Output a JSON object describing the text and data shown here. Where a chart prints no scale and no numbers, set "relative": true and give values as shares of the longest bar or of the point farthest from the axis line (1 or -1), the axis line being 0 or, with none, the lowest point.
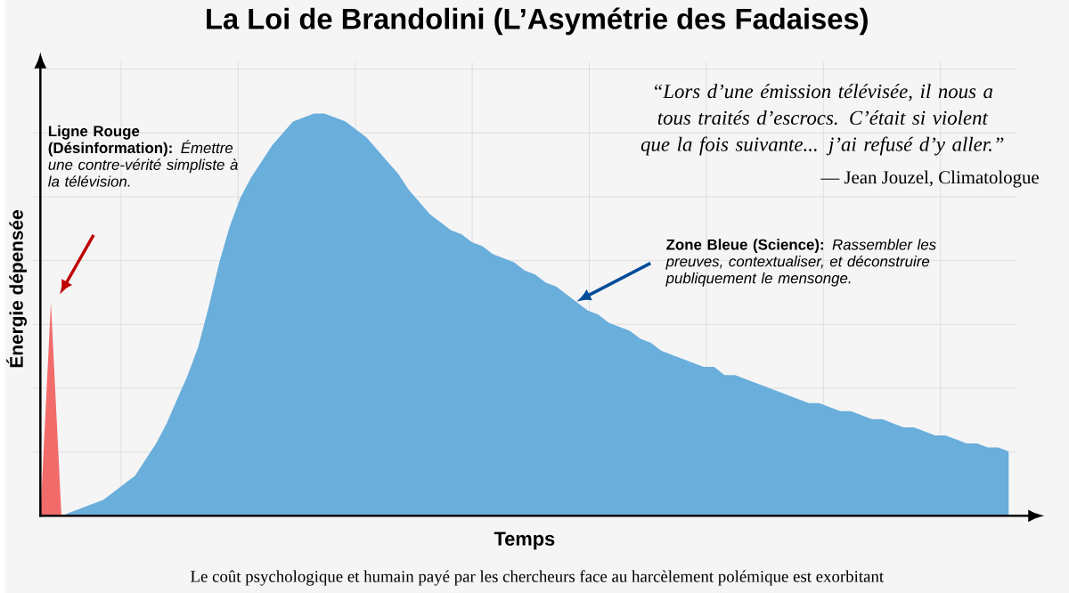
{
  "chart_data": {
    "type": "area",
    "relative": true,
    "grid": true,
    "title": "La Loi de Brandolini (L’Asymétrie des Fadaises)",
    "xlabel": "Temps",
    "ylabel": "Énergie dépensée",
    "categories": [
      null,
      null,
      null,
      null,
      null,
      null,
      null,
      null,
      null,
      null,
      null,
      null,
      null,
      null,
      null,
      null,
      null,
      null,
      null,
      null,
      null,
      null,
      null,
      null,
      null,
      null,
      null,
      null,
      null,
      null,
      null,
      null,
      null,
      null,
      null,
      null,
      null,
      null,
      null,
      null,
      null,
      null,
      null,
      null,
      null,
      null,
      null,
      null,
      null,
      null,
      null,
      null,
      null,
      null,
      null,
      null,
      null,
      null,
      null,
      null,
      null,
      null,
      null,
      null,
      null,
      null,
      null,
      null,
      null,
      null,
      null,
      null,
      null,
      null,
      null,
      null,
      null,
      null,
      null,
      null,
      null,
      null,
      null,
      null,
      null,
      null,
      null,
      null,
      null,
      null,
      null,
      null,
      null
    ],
    "series": [
      {
        "color": "#f26b6b",
        "values": [
          0,
          0.53,
          0,
          null,
          null,
          null,
          null,
          null,
          null,
          null,
          null,
          null,
          null,
          null,
          null,
          null,
          null,
          null,
          null,
          null,
          null,
          null,
          null,
          null,
          null,
          null,
          null,
          null,
          null,
          null,
          null,
          null,
          null,
          null,
          null,
          null,
          null,
          null,
          null,
          null,
          null,
          null,
          null,
          null,
          null,
          null,
          null,
          null,
          null,
          null,
          null,
          null,
          null,
          null,
          null,
          null,
          null,
          null,
          null,
          null,
          null,
          null,
          null,
          null,
          null,
          null,
          null,
          null,
          null,
          null,
          null,
          null,
          null,
          null,
          null,
          null,
          null,
          null,
          null,
          null,
          null,
          null,
          null,
          null,
          null,
          null,
          null,
          null,
          null,
          null,
          null,
          null,
          null
        ]
      },
      {
        "color": "#6aaedb",
        "values": [
          0,
          0,
          0,
          0.01,
          0.02,
          0.03,
          0.04,
          0.06,
          0.08,
          0.1,
          0.14,
          0.18,
          0.23,
          0.29,
          0.35,
          0.42,
          0.52,
          0.63,
          0.72,
          0.79,
          0.84,
          0.88,
          0.92,
          0.95,
          0.98,
          0.99,
          1,
          1,
          0.99,
          0.98,
          0.96,
          0.94,
          0.91,
          0.88,
          0.85,
          0.81,
          0.78,
          0.75,
          0.73,
          0.71,
          0.7,
          0.68,
          0.67,
          0.65,
          0.64,
          0.63,
          0.61,
          0.6,
          0.58,
          0.57,
          0.55,
          0.53,
          0.51,
          0.5,
          0.48,
          0.47,
          0.46,
          0.44,
          0.43,
          0.41,
          0.4,
          0.39,
          0.38,
          0.37,
          0.37,
          0.35,
          0.35,
          0.34,
          0.33,
          0.32,
          0.31,
          0.3,
          0.29,
          0.28,
          0.28,
          0.27,
          0.26,
          0.26,
          0.25,
          0.24,
          0.24,
          0.23,
          0.22,
          0.22,
          0.21,
          0.2,
          0.2,
          0.19,
          0.18,
          0.18,
          0.17,
          0.17,
          0.16
        ]
      }
    ],
    "annotations": [
      "**Ligne Rouge (Désinformation):** *Émettre une contre-vérité simpliste à la télévision.*",
      "**Zone Bleue (Science):** *Rassembler les preuves, contextualiser, et déconstruire publiquement le mensonge.*",
      "“Lors d’une émission télévisée, il nous a tous traités d’escrocs. C’était si violent que la fois suivante... j’ai refusé d’y aller.”",
      "— Jean Jouzel, Climatologue",
      "Le coût psychologique et humain payé par les chercheurs face au harcèlement polémique est exorbitant"
    ]
  }
}
